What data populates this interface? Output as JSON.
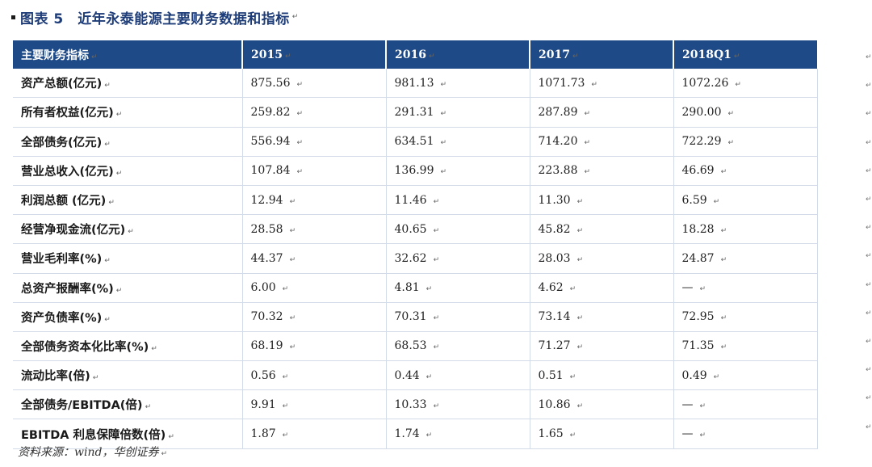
{
  "title": "图表 5　近年永泰能源主要财务数据和指标",
  "mark": "↵",
  "header": {
    "name": "主要财务指标",
    "years": [
      "2015",
      "2016",
      "2017",
      "2018Q1"
    ]
  },
  "rows": [
    {
      "name": "资产总额(亿元)",
      "values": [
        "875.56",
        "981.13",
        "1071.73",
        "1072.26"
      ]
    },
    {
      "name": "所有者权益(亿元)",
      "values": [
        "259.82",
        "291.31",
        "287.89",
        "290.00"
      ]
    },
    {
      "name": "全部债务(亿元)",
      "values": [
        "556.94",
        "634.51",
        "714.20",
        "722.29"
      ]
    },
    {
      "name": "营业总收入(亿元)",
      "values": [
        "107.84",
        "136.99",
        "223.88",
        "46.69"
      ]
    },
    {
      "name": "利润总额 (亿元)",
      "values": [
        "12.94",
        "11.46",
        "11.30",
        "6.59"
      ]
    },
    {
      "name": "经营净现金流(亿元)",
      "values": [
        "28.58",
        "40.65",
        "45.82",
        "18.28"
      ]
    },
    {
      "name": "营业毛利率(%)",
      "values": [
        "44.37",
        "32.62",
        "28.03",
        "24.87"
      ]
    },
    {
      "name": "总资产报酬率(%)",
      "values": [
        "6.00",
        "4.81",
        "4.62",
        "—"
      ]
    },
    {
      "name": "资产负债率(%)",
      "values": [
        "70.32",
        "70.31",
        "73.14",
        "72.95"
      ]
    },
    {
      "name": "全部债务资本化比率(%)",
      "values": [
        "68.19",
        "68.53",
        "71.27",
        "71.35"
      ]
    },
    {
      "name": "流动比率(倍)",
      "values": [
        "0.56",
        "0.44",
        "0.51",
        "0.49"
      ]
    },
    {
      "name": "全部债务/EBITDA(倍)",
      "values": [
        "9.91",
        "10.33",
        "10.86",
        "—"
      ]
    },
    {
      "name": "EBITDA 利息保障倍数(倍)",
      "values": [
        "1.87",
        "1.74",
        "1.65",
        "—"
      ]
    }
  ],
  "source": "资料来源：wind，华创证券",
  "colors": {
    "header_bg": "#1e4a87",
    "title": "#1e3d78",
    "grid": "#d4dbe8"
  }
}
